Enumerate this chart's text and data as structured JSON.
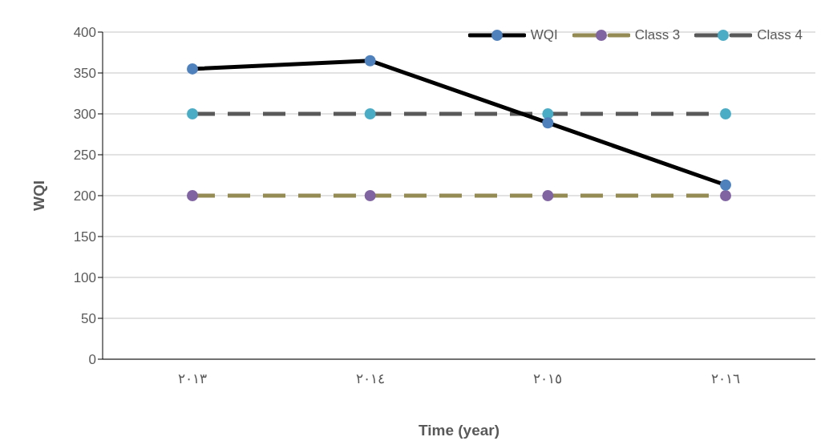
{
  "chart_data": {
    "type": "line",
    "xlabel": "Time (year)",
    "ylabel": "WQI",
    "categories": [
      "٢٠١٣",
      "٢٠١٤",
      "٢٠١٥",
      "٢٠١٦"
    ],
    "series": [
      {
        "name": "WQI",
        "color": "#000000",
        "colors": [
          "#4f81bd",
          "#4f81bd",
          "#4f81bd",
          "#4f81bd"
        ],
        "values": [
          355,
          365,
          289,
          213
        ],
        "line_style": "solid"
      },
      {
        "name": "Class 3",
        "color": "#948a54",
        "colors": [
          "#8064a2",
          "#8064a2",
          "#8064a2",
          "#8064a2"
        ],
        "values": [
          200,
          200,
          200,
          200
        ],
        "line_style": "dashed"
      },
      {
        "name": "Class 4",
        "color": "#595959",
        "colors": [
          "#4bacc6",
          "#4bacc6",
          "#4bacc6",
          "#4bacc6"
        ],
        "values": [
          300,
          300,
          300,
          300
        ],
        "line_style": "dashed"
      }
    ],
    "ylim": [
      0,
      400
    ],
    "yticks": [
      0,
      50,
      100,
      150,
      200,
      250,
      300,
      350,
      400
    ],
    "grid": "y",
    "legend": "top right",
    "marker": "circle"
  }
}
